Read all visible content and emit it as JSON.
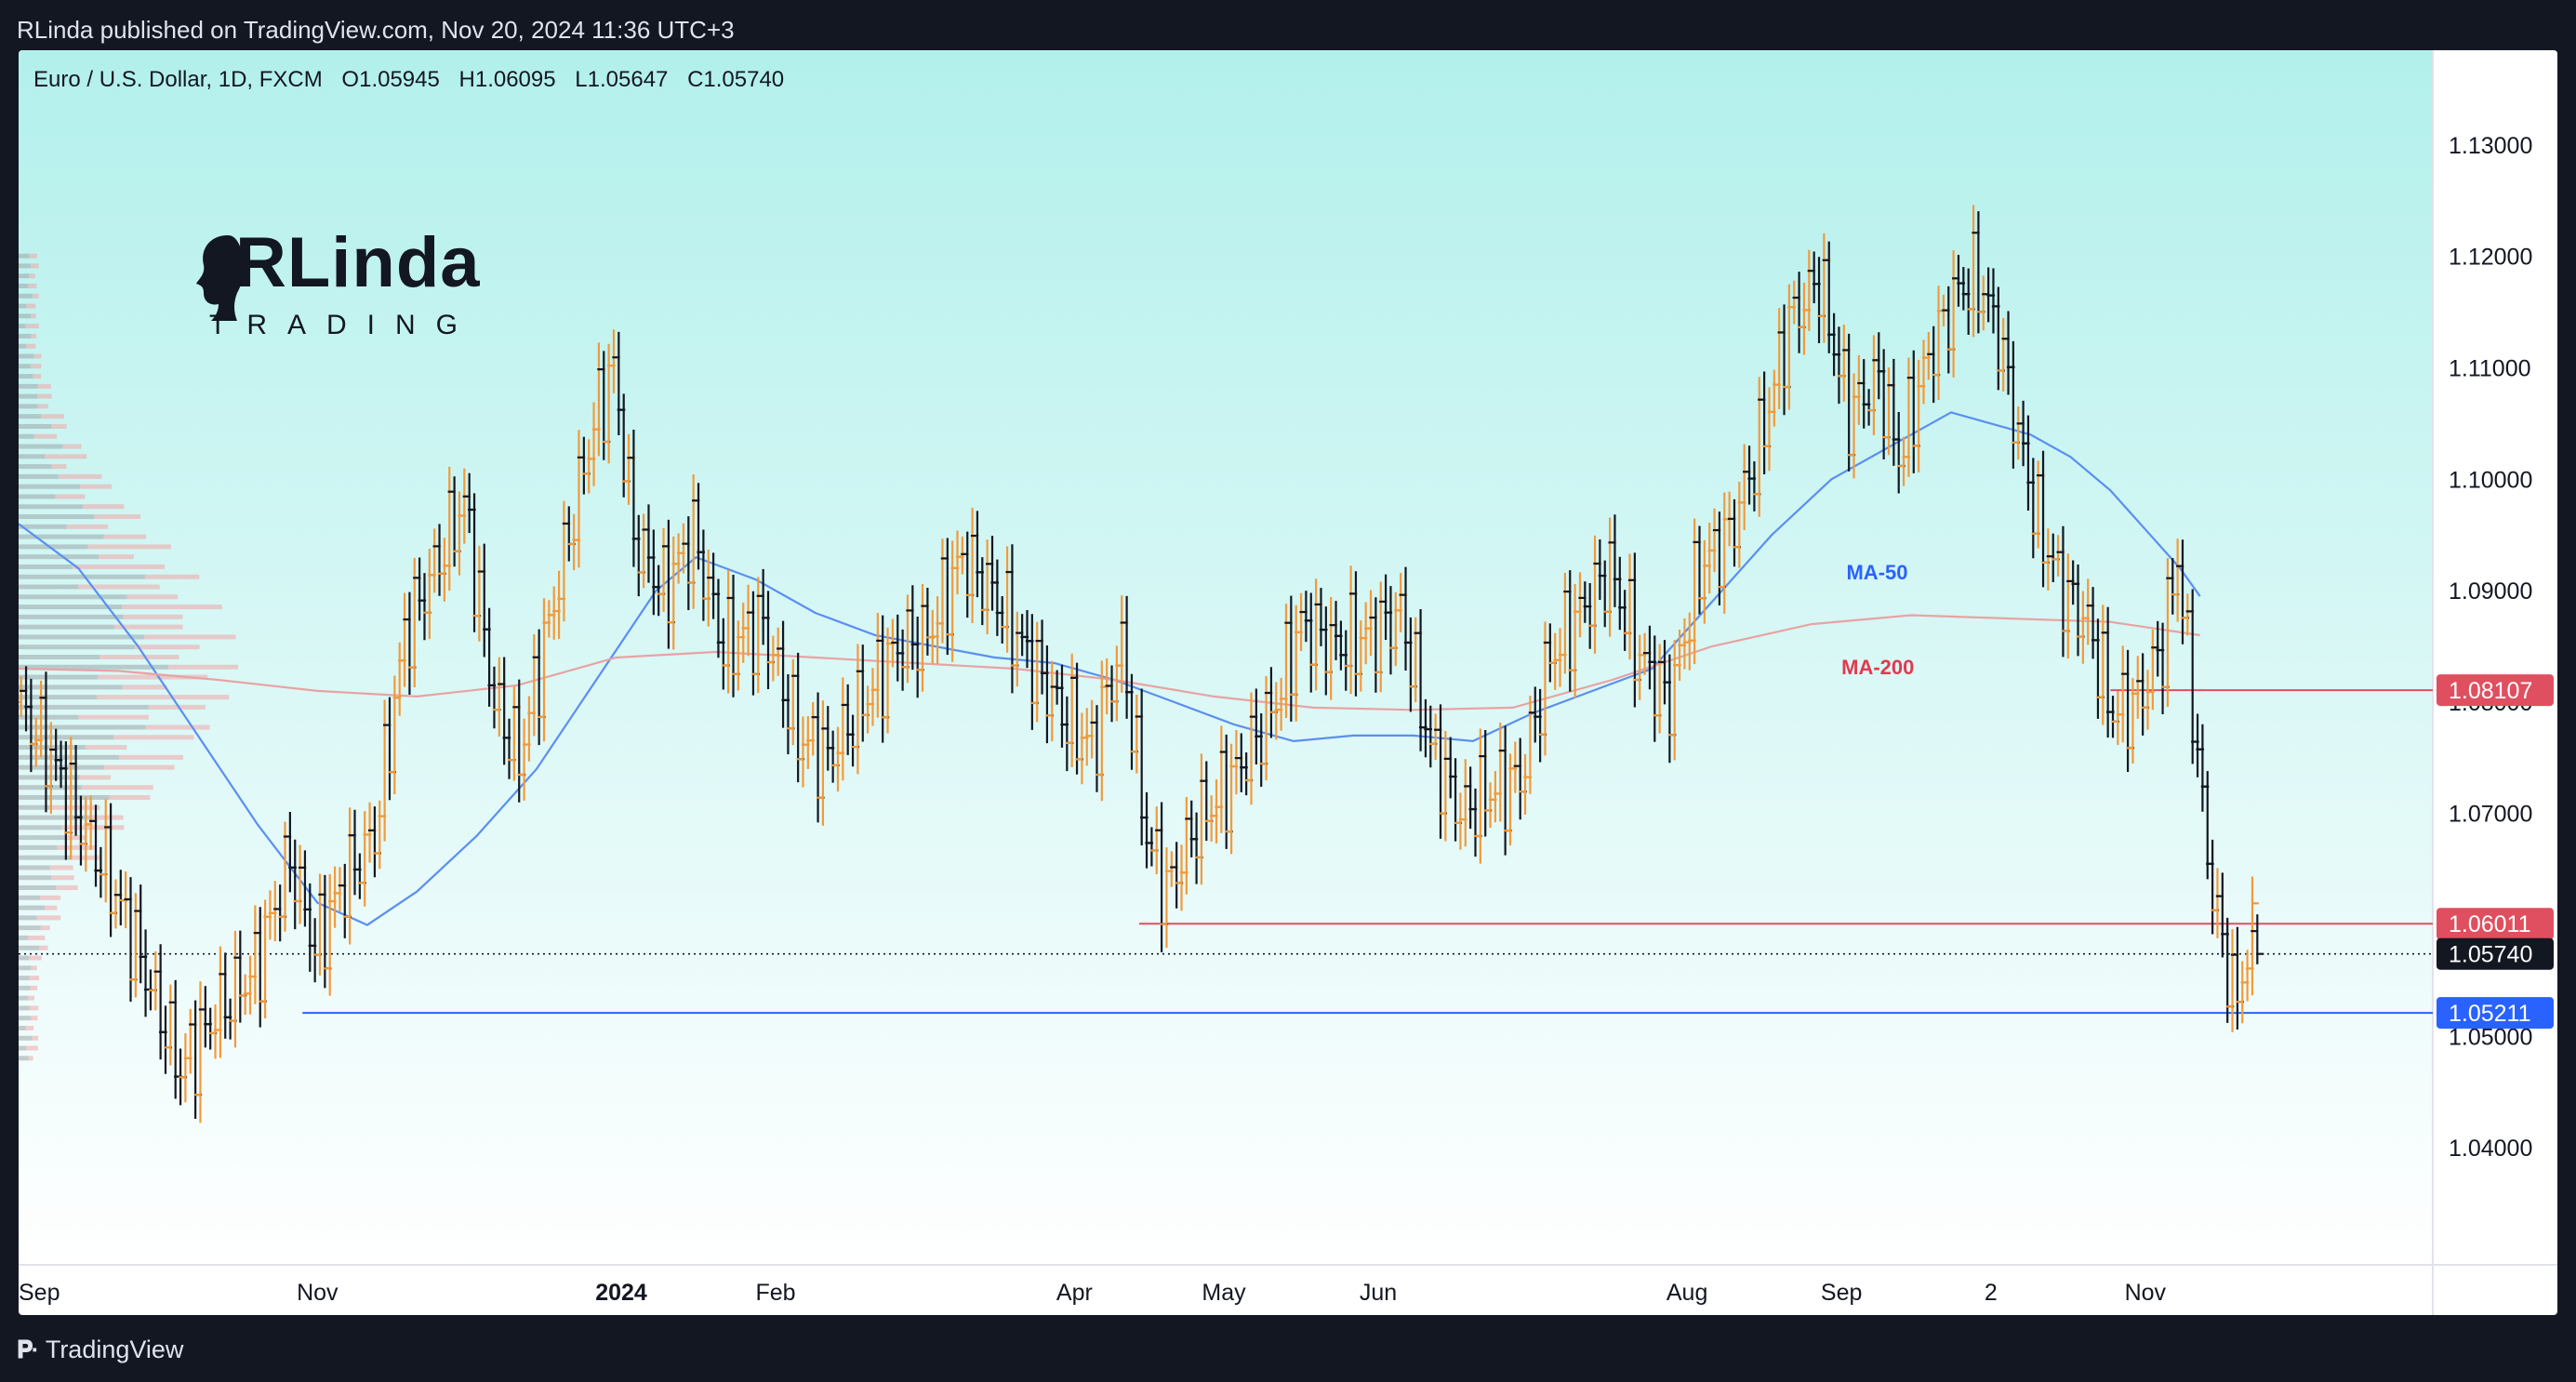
{
  "header": {
    "published_by": "RLinda published on TradingView.com, Nov 20, 2024 11:36 UTC+3"
  },
  "symbol": {
    "name": "Euro / U.S. Dollar, 1D, FXCM",
    "open": "O1.05945",
    "high": "H1.06095",
    "low": "L1.05647",
    "close": "C1.05740"
  },
  "logo": {
    "brand": "RLinda",
    "subtitle": "TRADING"
  },
  "footer": {
    "brand": "TradingView",
    "icon": "tradingview-logo-icon"
  },
  "colors": {
    "background_top": "#b2f0ec",
    "background_bottom": "#ffffff",
    "bar_up": "#f29a3a",
    "bar_down": "#131722",
    "ma50": "#5b8ff0",
    "ma200": "#e8a3a3",
    "level_red": "#e04f5f",
    "level_blue": "#2962ff",
    "current_price_tag": "#131722",
    "ma50_label": "#2962ff",
    "ma200_label": "#e03a4f"
  },
  "chart_data": {
    "type": "ohlc",
    "title": "Euro / U.S. Dollar, 1D, FXCM",
    "ylim": [
      1.0295,
      1.1385
    ],
    "y_ticks": [
      1.04,
      1.05,
      1.07,
      1.08,
      1.09,
      1.1,
      1.11,
      1.12,
      1.13
    ],
    "y_tick_labels": [
      "1.04000",
      "1.05000",
      "1.07000",
      "1.08000",
      "1.09000",
      "1.10000",
      "1.11000",
      "1.12000",
      "1.13000"
    ],
    "x_range_days": [
      0,
      450
    ],
    "x_ticks": [
      {
        "day": 0,
        "label": "Sep",
        "bold": false
      },
      {
        "day": 60,
        "label": "Nov",
        "bold": false
      },
      {
        "day": 121,
        "label": "2024",
        "bold": true
      },
      {
        "day": 152,
        "label": "Feb",
        "bold": false
      },
      {
        "day": 212,
        "label": "Apr",
        "bold": false
      },
      {
        "day": 242,
        "label": "May",
        "bold": false
      },
      {
        "day": 273,
        "label": "Jun",
        "bold": false
      },
      {
        "day": 335,
        "label": "Aug",
        "bold": false
      },
      {
        "day": 366,
        "label": "Sep",
        "bold": false
      },
      {
        "day": 396,
        "label": "2",
        "bold": false
      },
      {
        "day": 427,
        "label": "Nov",
        "bold": false
      }
    ],
    "anchors": [
      {
        "day": 0,
        "price": 1.08
      },
      {
        "day": 6,
        "price": 1.076
      },
      {
        "day": 12,
        "price": 1.07
      },
      {
        "day": 18,
        "price": 1.065
      },
      {
        "day": 25,
        "price": 1.057
      },
      {
        "day": 33,
        "price": 1.047
      },
      {
        "day": 40,
        "price": 1.052
      },
      {
        "day": 48,
        "price": 1.056
      },
      {
        "day": 55,
        "price": 1.066
      },
      {
        "day": 60,
        "price": 1.058
      },
      {
        "day": 66,
        "price": 1.064
      },
      {
        "day": 72,
        "price": 1.068
      },
      {
        "day": 78,
        "price": 1.086
      },
      {
        "day": 84,
        "price": 1.092
      },
      {
        "day": 90,
        "price": 1.098
      },
      {
        "day": 96,
        "price": 1.08
      },
      {
        "day": 101,
        "price": 1.075
      },
      {
        "day": 108,
        "price": 1.089
      },
      {
        "day": 116,
        "price": 1.105
      },
      {
        "day": 120,
        "price": 1.11
      },
      {
        "day": 124,
        "price": 1.095
      },
      {
        "day": 130,
        "price": 1.09
      },
      {
        "day": 136,
        "price": 1.095
      },
      {
        "day": 142,
        "price": 1.085
      },
      {
        "day": 150,
        "price": 1.087
      },
      {
        "day": 157,
        "price": 1.077
      },
      {
        "day": 163,
        "price": 1.075
      },
      {
        "day": 170,
        "price": 1.08
      },
      {
        "day": 177,
        "price": 1.085
      },
      {
        "day": 183,
        "price": 1.086
      },
      {
        "day": 190,
        "price": 1.093
      },
      {
        "day": 196,
        "price": 1.09
      },
      {
        "day": 202,
        "price": 1.085
      },
      {
        "day": 210,
        "price": 1.079
      },
      {
        "day": 216,
        "price": 1.076
      },
      {
        "day": 222,
        "price": 1.085
      },
      {
        "day": 227,
        "price": 1.068
      },
      {
        "day": 231,
        "price": 1.063
      },
      {
        "day": 237,
        "price": 1.069
      },
      {
        "day": 244,
        "price": 1.073
      },
      {
        "day": 252,
        "price": 1.079
      },
      {
        "day": 258,
        "price": 1.087
      },
      {
        "day": 265,
        "price": 1.085
      },
      {
        "day": 272,
        "price": 1.086
      },
      {
        "day": 278,
        "price": 1.088
      },
      {
        "day": 284,
        "price": 1.076
      },
      {
        "day": 290,
        "price": 1.07
      },
      {
        "day": 296,
        "price": 1.072
      },
      {
        "day": 302,
        "price": 1.073
      },
      {
        "day": 308,
        "price": 1.084
      },
      {
        "day": 314,
        "price": 1.088
      },
      {
        "day": 320,
        "price": 1.092
      },
      {
        "day": 326,
        "price": 1.084
      },
      {
        "day": 332,
        "price": 1.08
      },
      {
        "day": 338,
        "price": 1.092
      },
      {
        "day": 344,
        "price": 1.095
      },
      {
        "day": 350,
        "price": 1.103
      },
      {
        "day": 356,
        "price": 1.114
      },
      {
        "day": 362,
        "price": 1.118
      },
      {
        "day": 368,
        "price": 1.106
      },
      {
        "day": 374,
        "price": 1.109
      },
      {
        "day": 378,
        "price": 1.102
      },
      {
        "day": 384,
        "price": 1.111
      },
      {
        "day": 390,
        "price": 1.117
      },
      {
        "day": 394,
        "price": 1.118
      },
      {
        "day": 398,
        "price": 1.113
      },
      {
        "day": 402,
        "price": 1.104
      },
      {
        "day": 406,
        "price": 1.096
      },
      {
        "day": 411,
        "price": 1.09
      },
      {
        "day": 416,
        "price": 1.087
      },
      {
        "day": 421,
        "price": 1.079
      },
      {
        "day": 426,
        "price": 1.08
      },
      {
        "day": 431,
        "price": 1.085
      },
      {
        "day": 434,
        "price": 1.093
      },
      {
        "day": 437,
        "price": 1.08
      },
      {
        "day": 440,
        "price": 1.066
      },
      {
        "day": 443,
        "price": 1.058
      },
      {
        "day": 446,
        "price": 1.053
      },
      {
        "day": 448,
        "price": 1.058
      },
      {
        "day": 450,
        "price": 1.0574
      }
    ],
    "last_bar": {
      "open": 1.05945,
      "high": 1.06095,
      "low": 1.05647,
      "close": 1.0574
    },
    "series": [
      {
        "name": "MA-50",
        "points": [
          {
            "day": 0,
            "price": 1.096
          },
          {
            "day": 12,
            "price": 1.092
          },
          {
            "day": 24,
            "price": 1.085
          },
          {
            "day": 36,
            "price": 1.077
          },
          {
            "day": 48,
            "price": 1.069
          },
          {
            "day": 60,
            "price": 1.062
          },
          {
            "day": 70,
            "price": 1.06
          },
          {
            "day": 80,
            "price": 1.063
          },
          {
            "day": 92,
            "price": 1.068
          },
          {
            "day": 104,
            "price": 1.074
          },
          {
            "day": 116,
            "price": 1.082
          },
          {
            "day": 128,
            "price": 1.09
          },
          {
            "day": 136,
            "price": 1.093
          },
          {
            "day": 148,
            "price": 1.091
          },
          {
            "day": 160,
            "price": 1.088
          },
          {
            "day": 172,
            "price": 1.086
          },
          {
            "day": 184,
            "price": 1.085
          },
          {
            "day": 196,
            "price": 1.084
          },
          {
            "day": 208,
            "price": 1.0835
          },
          {
            "day": 220,
            "price": 1.082
          },
          {
            "day": 232,
            "price": 1.08
          },
          {
            "day": 244,
            "price": 1.078
          },
          {
            "day": 256,
            "price": 1.0765
          },
          {
            "day": 268,
            "price": 1.077
          },
          {
            "day": 280,
            "price": 1.077
          },
          {
            "day": 292,
            "price": 1.0765
          },
          {
            "day": 304,
            "price": 1.079
          },
          {
            "day": 316,
            "price": 1.081
          },
          {
            "day": 328,
            "price": 1.083
          },
          {
            "day": 340,
            "price": 1.089
          },
          {
            "day": 352,
            "price": 1.095
          },
          {
            "day": 364,
            "price": 1.1
          },
          {
            "day": 376,
            "price": 1.103
          },
          {
            "day": 388,
            "price": 1.106
          },
          {
            "day": 396,
            "price": 1.105
          },
          {
            "day": 404,
            "price": 1.104
          },
          {
            "day": 412,
            "price": 1.102
          },
          {
            "day": 420,
            "price": 1.099
          },
          {
            "day": 428,
            "price": 1.095
          },
          {
            "day": 434,
            "price": 1.092
          },
          {
            "day": 438,
            "price": 1.0895
          }
        ]
      },
      {
        "name": "MA-200",
        "points": [
          {
            "day": 0,
            "price": 1.083
          },
          {
            "day": 20,
            "price": 1.0828
          },
          {
            "day": 40,
            "price": 1.082
          },
          {
            "day": 60,
            "price": 1.081
          },
          {
            "day": 80,
            "price": 1.0805
          },
          {
            "day": 100,
            "price": 1.0815
          },
          {
            "day": 120,
            "price": 1.084
          },
          {
            "day": 140,
            "price": 1.0845
          },
          {
            "day": 160,
            "price": 1.084
          },
          {
            "day": 180,
            "price": 1.0835
          },
          {
            "day": 200,
            "price": 1.083
          },
          {
            "day": 220,
            "price": 1.082
          },
          {
            "day": 240,
            "price": 1.0805
          },
          {
            "day": 260,
            "price": 1.0795
          },
          {
            "day": 280,
            "price": 1.0793
          },
          {
            "day": 300,
            "price": 1.0795
          },
          {
            "day": 320,
            "price": 1.082
          },
          {
            "day": 340,
            "price": 1.085
          },
          {
            "day": 360,
            "price": 1.087
          },
          {
            "day": 380,
            "price": 1.0878
          },
          {
            "day": 400,
            "price": 1.0875
          },
          {
            "day": 420,
            "price": 1.0872
          },
          {
            "day": 438,
            "price": 1.086
          }
        ]
      }
    ],
    "ma_labels": [
      {
        "name": "MA-50",
        "text": "MA-50",
        "day": 367,
        "price": 1.091
      },
      {
        "name": "MA-200",
        "text": "MA-200",
        "day": 366,
        "price": 1.0825
      }
    ],
    "levels": [
      {
        "name": "resistance-1.08107",
        "price": 1.08107,
        "label": "1.08107",
        "from_day": 420,
        "color": "#e04f5f",
        "tag_color": "#e04f5f",
        "dotted": false
      },
      {
        "name": "resistance-1.06011",
        "price": 1.06011,
        "label": "1.06011",
        "from_day": 225,
        "color": "#e04f5f",
        "tag_color": "#e04f5f",
        "dotted": false
      },
      {
        "name": "current-price-1.05740",
        "price": 1.0574,
        "label": "1.05740",
        "from_day": 0,
        "color": "#131722",
        "tag_color": "#131722",
        "dotted": true
      },
      {
        "name": "support-1.05211",
        "price": 1.05211,
        "label": "1.05211",
        "from_day": 57,
        "color": "#2962ff",
        "tag_color": "#2962ff",
        "dotted": false
      }
    ],
    "volume_profile": {
      "from": 1.048,
      "to": 1.12,
      "peak_price": 1.0835
    }
  }
}
